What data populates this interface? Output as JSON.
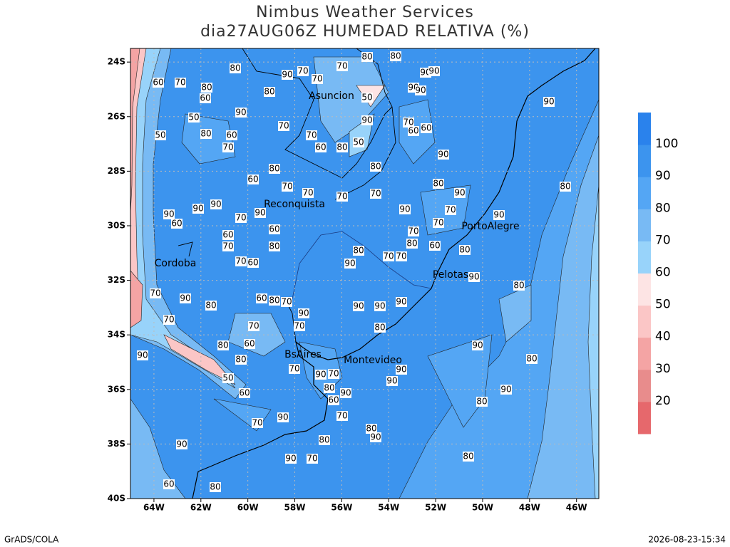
{
  "header": {
    "title": "Nimbus Weather Services",
    "subtitle": "dia27AUG06Z HUMEDAD RELATIVA (%)"
  },
  "map": {
    "xlim": [
      -65,
      -45.05
    ],
    "ylim": [
      -40,
      -23.5
    ],
    "xticks": [
      {
        "value": -64,
        "label": "64W"
      },
      {
        "value": -62,
        "label": "62W"
      },
      {
        "value": -60,
        "label": "60W"
      },
      {
        "value": -58,
        "label": "58W"
      },
      {
        "value": -56,
        "label": "56W"
      },
      {
        "value": -54,
        "label": "54W"
      },
      {
        "value": -52,
        "label": "52W"
      },
      {
        "value": -50,
        "label": "50W"
      },
      {
        "value": -48,
        "label": "48W"
      },
      {
        "value": -46,
        "label": "46W"
      }
    ],
    "yticks": [
      {
        "value": -24,
        "label": "24S"
      },
      {
        "value": -26,
        "label": "26S"
      },
      {
        "value": -28,
        "label": "28S"
      },
      {
        "value": -30,
        "label": "30S"
      },
      {
        "value": -32,
        "label": "32S"
      },
      {
        "value": -34,
        "label": "34S"
      },
      {
        "value": -36,
        "label": "36S"
      },
      {
        "value": -38,
        "label": "38S"
      },
      {
        "value": -40,
        "label": "40S"
      }
    ],
    "grid": true,
    "cities": [
      "Asuncion",
      "Reconquista",
      "PortoAlegre",
      "Cordoba",
      "Pelotas",
      "BsAires",
      "Montevideo"
    ],
    "contour_labels": [
      80,
      90,
      70,
      70,
      70,
      80,
      80,
      90,
      90,
      90,
      90,
      50,
      80,
      60,
      80,
      90,
      50,
      50,
      80,
      60,
      70,
      70,
      70,
      60,
      80,
      50,
      90,
      70,
      60,
      60,
      90,
      80,
      80,
      90,
      80,
      60,
      80,
      70,
      70,
      70,
      70,
      90,
      90,
      90,
      60,
      70,
      90,
      60,
      60,
      70,
      80,
      80,
      90,
      70,
      70,
      70,
      80,
      90,
      60,
      70,
      80,
      70,
      90,
      90,
      90,
      80,
      70,
      60,
      90,
      80,
      60,
      80,
      70,
      90,
      70,
      90,
      90,
      80,
      90,
      70,
      60,
      80,
      80,
      50,
      60,
      70,
      90,
      70,
      80,
      90,
      60,
      70,
      90,
      90,
      90,
      80,
      90,
      80,
      90,
      70,
      80,
      80,
      90,
      90,
      70,
      80,
      90,
      80,
      60,
      70,
      70,
      90,
      60,
      70
    ]
  },
  "colorbar": {
    "lim": [
      10,
      110
    ],
    "ticks": [
      20,
      30,
      40,
      50,
      60,
      70,
      80,
      90,
      100
    ],
    "colors": [
      "#e6686c",
      "#e88c8c",
      "#f4a4a4",
      "#fbc6c6",
      "#fde4e4",
      "#98d3fa",
      "#78baf4",
      "#54a6f4",
      "#3c94ee",
      "#2a82ec"
    ]
  },
  "footer": {
    "left": "GrADS/COLA",
    "right": "2026-08-23-15:34"
  }
}
